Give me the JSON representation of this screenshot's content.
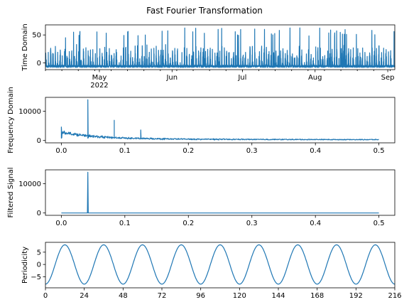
{
  "chart_data": {
    "title": "Fast Fourier Transformation",
    "panels": [
      {
        "id": "time",
        "type": "line",
        "ylabel": "Time Domain",
        "xlim": [
          "2022-04-08",
          "2022-09-04"
        ],
        "ylim": [
          -12,
          68
        ],
        "yticks": [
          0,
          50
        ],
        "xticks": [
          {
            "value": "2022-05-01",
            "label": "May",
            "sublabel": "2022"
          },
          {
            "value": "2022-06-01",
            "label": "Jun"
          },
          {
            "value": "2022-07-01",
            "label": "Jul"
          },
          {
            "value": "2022-08-01",
            "label": "Aug"
          },
          {
            "value": "2022-09-01",
            "label": "Sep"
          }
        ],
        "series": [
          {
            "start": "2022-04-08",
            "end": "2022-09-04",
            "samples_per_day": 24,
            "baseline": -8,
            "max": 63
          }
        ]
      },
      {
        "id": "freq",
        "type": "line",
        "ylabel": "Frequency Domain",
        "xlim": [
          -0.025,
          0.525
        ],
        "ylim": [
          -800,
          14700
        ],
        "yticks": [
          0,
          10000
        ],
        "xticks": [
          0.0,
          0.1,
          0.2,
          0.3,
          0.4,
          0.5
        ],
        "peaks": [
          {
            "x": 0.0,
            "y": 4600
          },
          {
            "x": 0.0417,
            "y": 13900
          },
          {
            "x": 0.0833,
            "y": 6900
          },
          {
            "x": 0.125,
            "y": 3600
          }
        ]
      },
      {
        "id": "filtered",
        "type": "line",
        "ylabel": "Filtered Signal",
        "xlim": [
          -0.025,
          0.525
        ],
        "ylim": [
          -800,
          14700
        ],
        "yticks": [
          0,
          10000
        ],
        "xticks": [
          0.0,
          0.1,
          0.2,
          0.3,
          0.4,
          0.5
        ],
        "peaks": [
          {
            "x": 0.0417,
            "y": 13900
          }
        ]
      },
      {
        "id": "period",
        "type": "line",
        "ylabel": "Periodicity",
        "xlim": [
          0,
          216
        ],
        "ylim": [
          -9.5,
          9.0
        ],
        "yticks": [
          -5,
          0,
          5
        ],
        "xticks": [
          0,
          24,
          48,
          72,
          96,
          120,
          144,
          168,
          192,
          216
        ],
        "series": [
          {
            "function": "sine",
            "amplitude": 8,
            "period_hours": 24,
            "phase_hours": -6,
            "x_start": 0,
            "x_end": 216
          }
        ]
      }
    ]
  },
  "colors": {
    "line": "#1f77b4",
    "axes": "#000000",
    "background": "#ffffff"
  }
}
